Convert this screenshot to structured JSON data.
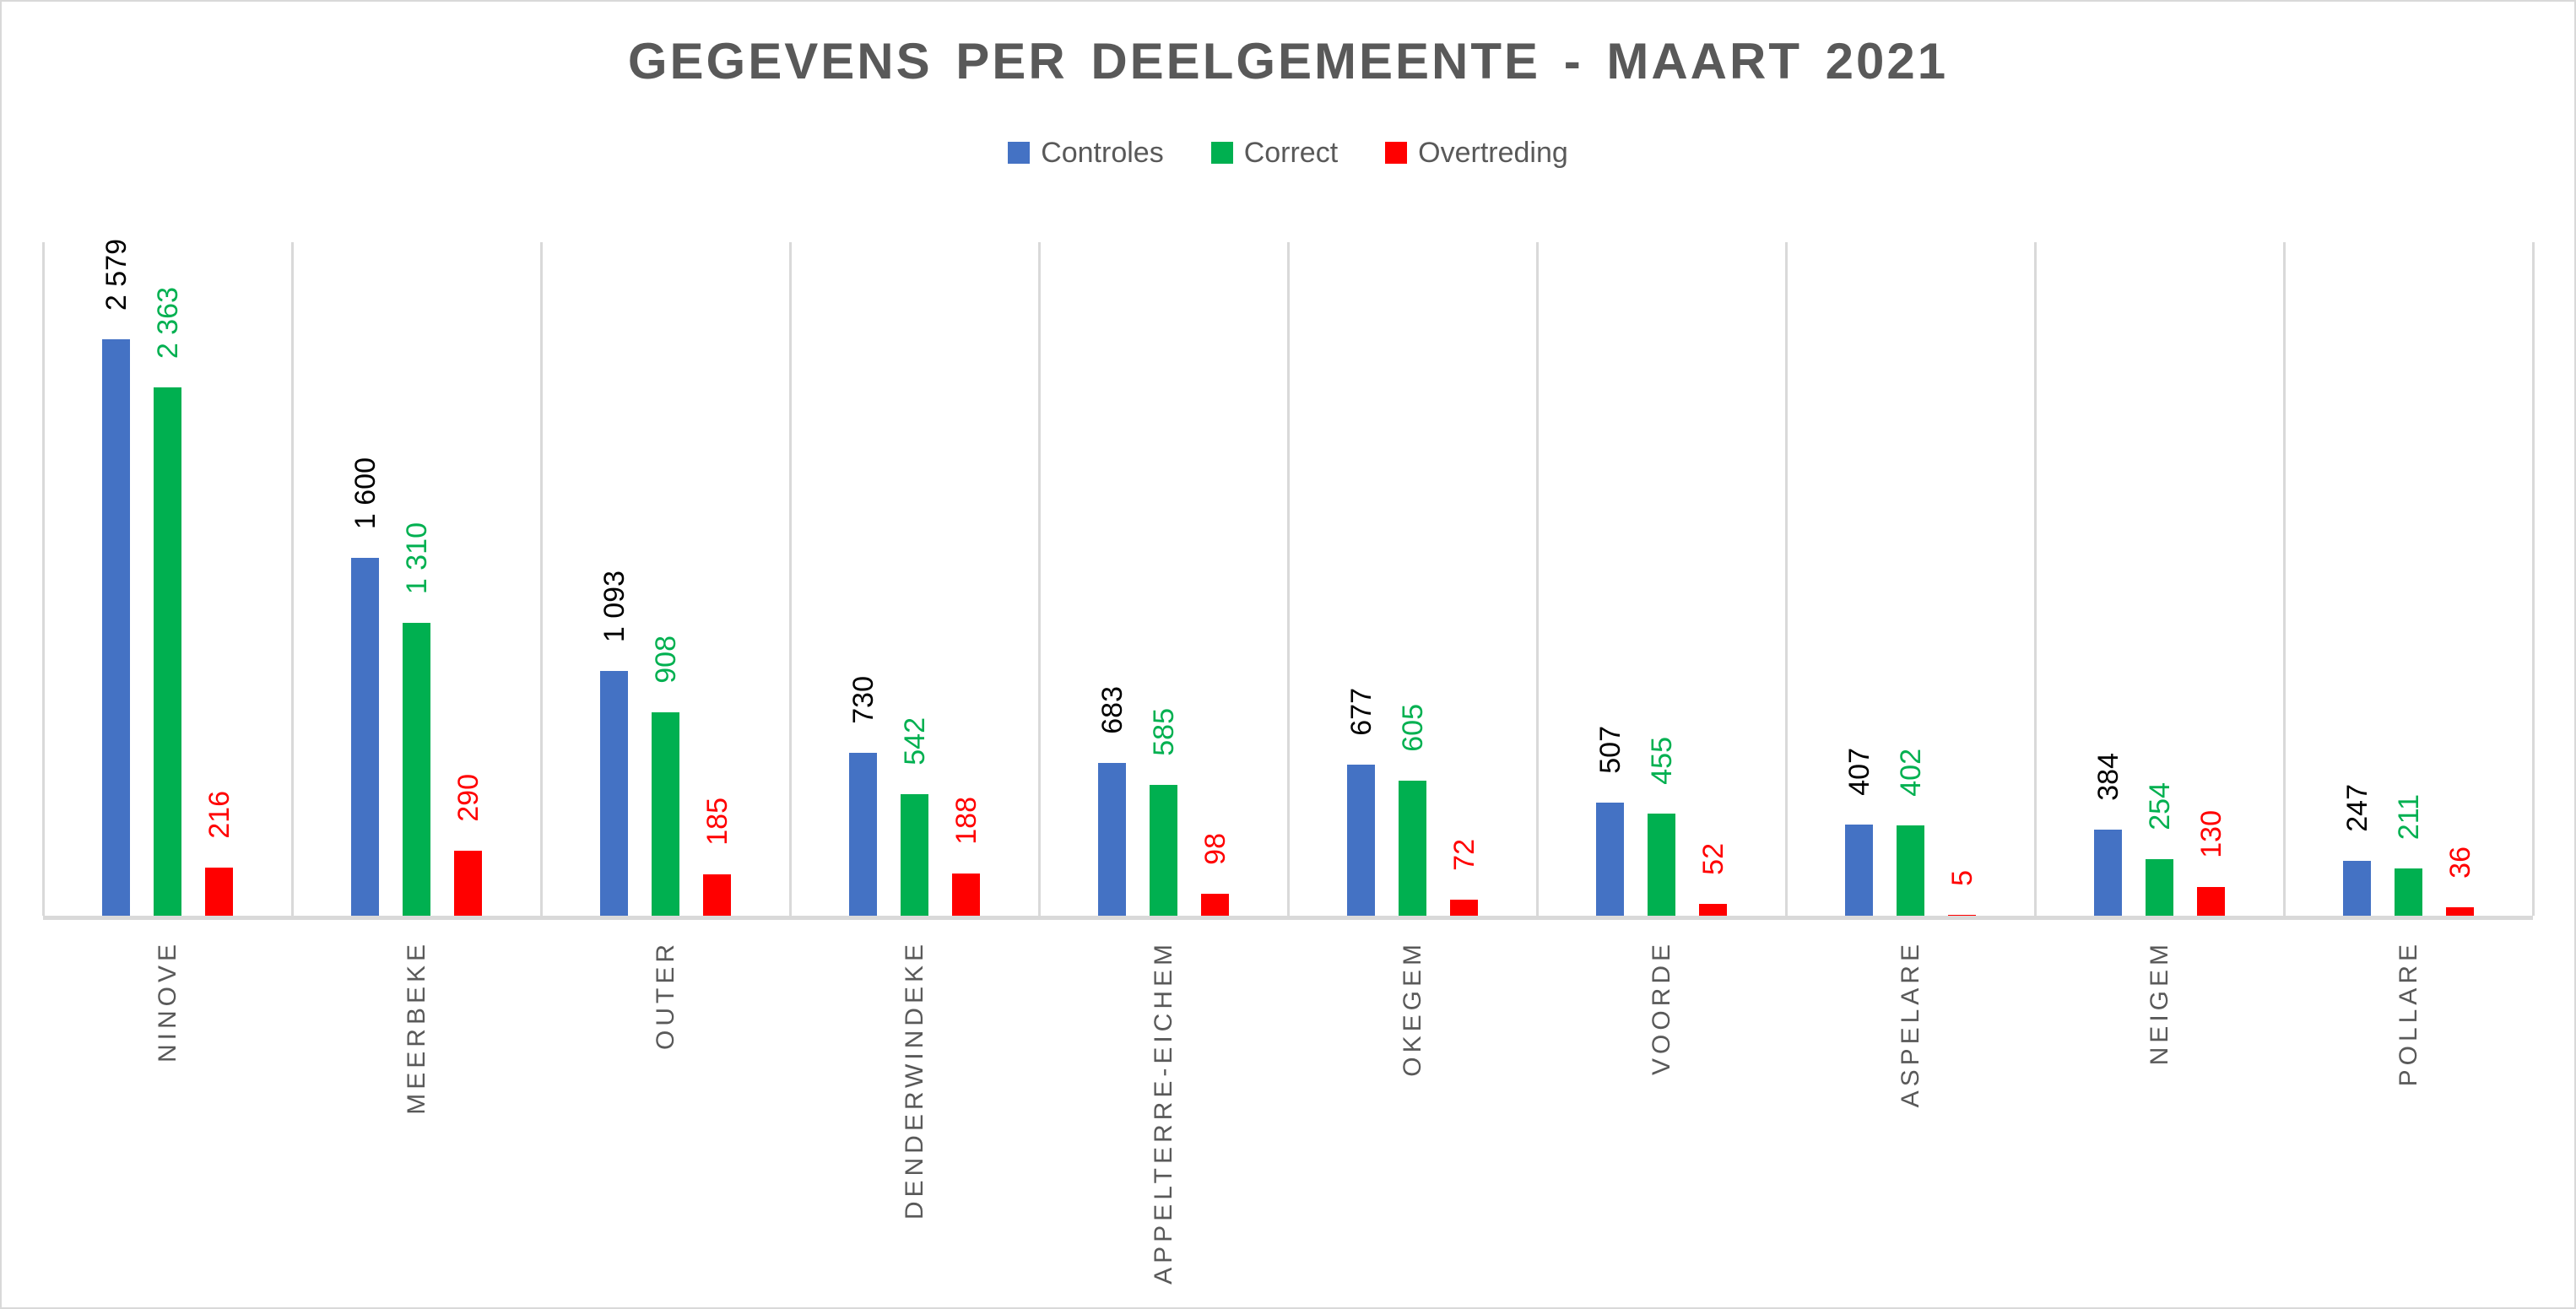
{
  "title": "GEGEVENS PER DEELGEMEENTE - MAART 2021",
  "chart_data": {
    "type": "bar",
    "title": "GEGEVENS PER DEELGEMEENTE - MAART 2021",
    "categories": [
      "NINOVE",
      "MEERBEKE",
      "OUTER",
      "DENDERWINDEKE",
      "APPELTERRE-EICHEM",
      "OKEGEM",
      "VOORDE",
      "ASPELARE",
      "NEIGEM",
      "POLLARE"
    ],
    "series": [
      {
        "name": "Controles",
        "color": "#4472C4",
        "label_color": "#000000",
        "values": [
          2579,
          1600,
          1093,
          730,
          683,
          677,
          507,
          407,
          384,
          247
        ]
      },
      {
        "name": "Correct",
        "color": "#00B050",
        "label_color": "#00B050",
        "values": [
          2363,
          1310,
          908,
          542,
          585,
          605,
          455,
          402,
          254,
          211
        ]
      },
      {
        "name": "Overtreding",
        "color": "#FF0000",
        "label_color": "#FF0000",
        "values": [
          216,
          290,
          185,
          188,
          98,
          72,
          52,
          5,
          130,
          36
        ]
      }
    ],
    "number_format": "space-thousands",
    "data_labels": "rotated-vertical-above-bars",
    "category_labels": "rotated-vertical-below-axis",
    "legend_position": "top",
    "grid": "vertical-category-separators-only",
    "xlabel": "",
    "ylabel": "",
    "ylim": [
      0,
      2800
    ]
  },
  "colors": {
    "background": "#FFFFFF",
    "axis_and_separators": "#D9D9D9",
    "title_text": "#595959",
    "legend_text": "#595959",
    "category_label_text": "#595959"
  }
}
